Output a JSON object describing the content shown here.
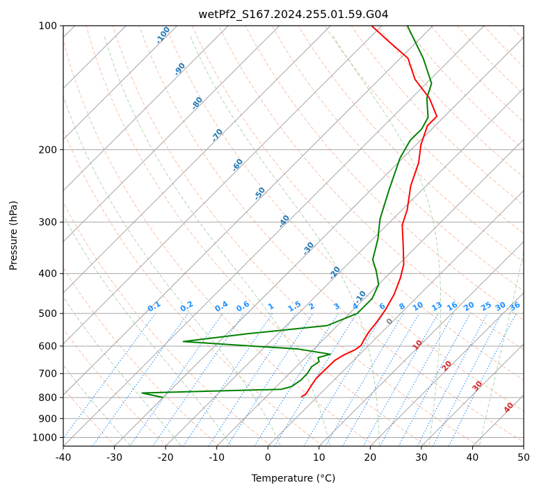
{
  "chart_data": {
    "type": "line",
    "title": "wetPf2_S167.2024.255.01.59.G04",
    "xlabel": "Temperature (°C)",
    "ylabel": "Pressure (hPa)",
    "xlim": [
      -40,
      50
    ],
    "ylim": [
      1050,
      100
    ],
    "y_scale": "log",
    "skew": true,
    "grid": true,
    "x_ticks": [
      -40,
      -30,
      -20,
      -10,
      0,
      10,
      20,
      30,
      40,
      50
    ],
    "y_ticks": [
      100,
      200,
      300,
      400,
      500,
      600,
      700,
      800,
      900,
      1000
    ],
    "colors": {
      "temperature": "#ff0000",
      "dewpoint": "#008000",
      "isotherm": "#9a9a9a",
      "isobar": "#9a9a9a",
      "dry_adiabat": "#f4a582",
      "moist_adiabat": "#99cc99",
      "mixing_ratio": "#1e90ff",
      "adiabat_label": "#1f77b4",
      "wetbulb_label": "#d62728"
    },
    "series": [
      {
        "key": "temperature",
        "points": [
          [
            -3.1,
            798
          ],
          [
            -2.8,
            784
          ],
          [
            -3.0,
            770
          ],
          [
            -3.3,
            752
          ],
          [
            -3.8,
            720
          ],
          [
            -3.8,
            690
          ],
          [
            -3.7,
            650
          ],
          [
            -3.0,
            630
          ],
          [
            -1.8,
            612
          ],
          [
            -1.5,
            598
          ],
          [
            -2.0,
            580
          ],
          [
            -2.6,
            555
          ],
          [
            -3.0,
            525
          ],
          [
            -3.7,
            490
          ],
          [
            -5.0,
            450
          ],
          [
            -7.0,
            410
          ],
          [
            -9.0,
            380
          ],
          [
            -13.0,
            340
          ],
          [
            -17.0,
            305
          ],
          [
            -19.0,
            280
          ],
          [
            -23.0,
            245
          ],
          [
            -26.0,
            215
          ],
          [
            -29.0,
            195
          ],
          [
            -31.5,
            175
          ],
          [
            -31.5,
            166
          ],
          [
            -36.5,
            150
          ],
          [
            -43.0,
            135
          ],
          [
            -48.5,
            120
          ],
          [
            -55.0,
            110
          ],
          [
            -62.0,
            100
          ]
        ]
      },
      {
        "key": "dewpoint",
        "points": [
          [
            -30.0,
            800
          ],
          [
            -35.0,
            780
          ],
          [
            -8.5,
            764
          ],
          [
            -7.0,
            752
          ],
          [
            -6.5,
            726
          ],
          [
            -6.5,
            700
          ],
          [
            -7.0,
            673
          ],
          [
            -6.5,
            655
          ],
          [
            -7.5,
            640
          ],
          [
            -5.8,
            628
          ],
          [
            -13.0,
            610
          ],
          [
            -37.0,
            585
          ],
          [
            -26.0,
            560
          ],
          [
            -12.0,
            535
          ],
          [
            -8.5,
            500
          ],
          [
            -8.5,
            460
          ],
          [
            -10.0,
            425
          ],
          [
            -13.0,
            395
          ],
          [
            -16.0,
            370
          ],
          [
            -19.0,
            330
          ],
          [
            -22.5,
            295
          ],
          [
            -26.5,
            250
          ],
          [
            -30.5,
            210
          ],
          [
            -32.0,
            190
          ],
          [
            -32.0,
            178
          ],
          [
            -33.0,
            167
          ],
          [
            -37.0,
            150
          ],
          [
            -39.0,
            138
          ],
          [
            -45.5,
            120
          ],
          [
            -55.0,
            100
          ]
        ]
      }
    ],
    "mixing_ratio_labels": [
      "0.1",
      "0.2",
      "0.4",
      "0.6",
      "1",
      "1.5",
      "2",
      "3",
      "4",
      "6",
      "8",
      "10",
      "13",
      "16",
      "20",
      "25",
      "30",
      "36"
    ],
    "mixing_ratio_values": [
      0.1,
      0.2,
      0.4,
      0.6,
      1,
      1.5,
      2,
      3,
      4,
      6,
      8,
      10,
      13,
      16,
      20,
      25,
      30,
      36
    ],
    "dry_adiabat_labels": [
      "-100",
      "-90",
      "-80",
      "-70",
      "-60",
      "-50",
      "-40",
      "-30",
      "-20",
      "-10"
    ],
    "dry_adiabat_values": [
      -100,
      -90,
      -80,
      -70,
      -60,
      -50,
      -40,
      -30,
      -20,
      -10
    ],
    "wet_bulb_labels": [
      "0",
      "10",
      "20",
      "30",
      "40"
    ],
    "wet_bulb_values": [
      0,
      10,
      20,
      30,
      40
    ]
  }
}
